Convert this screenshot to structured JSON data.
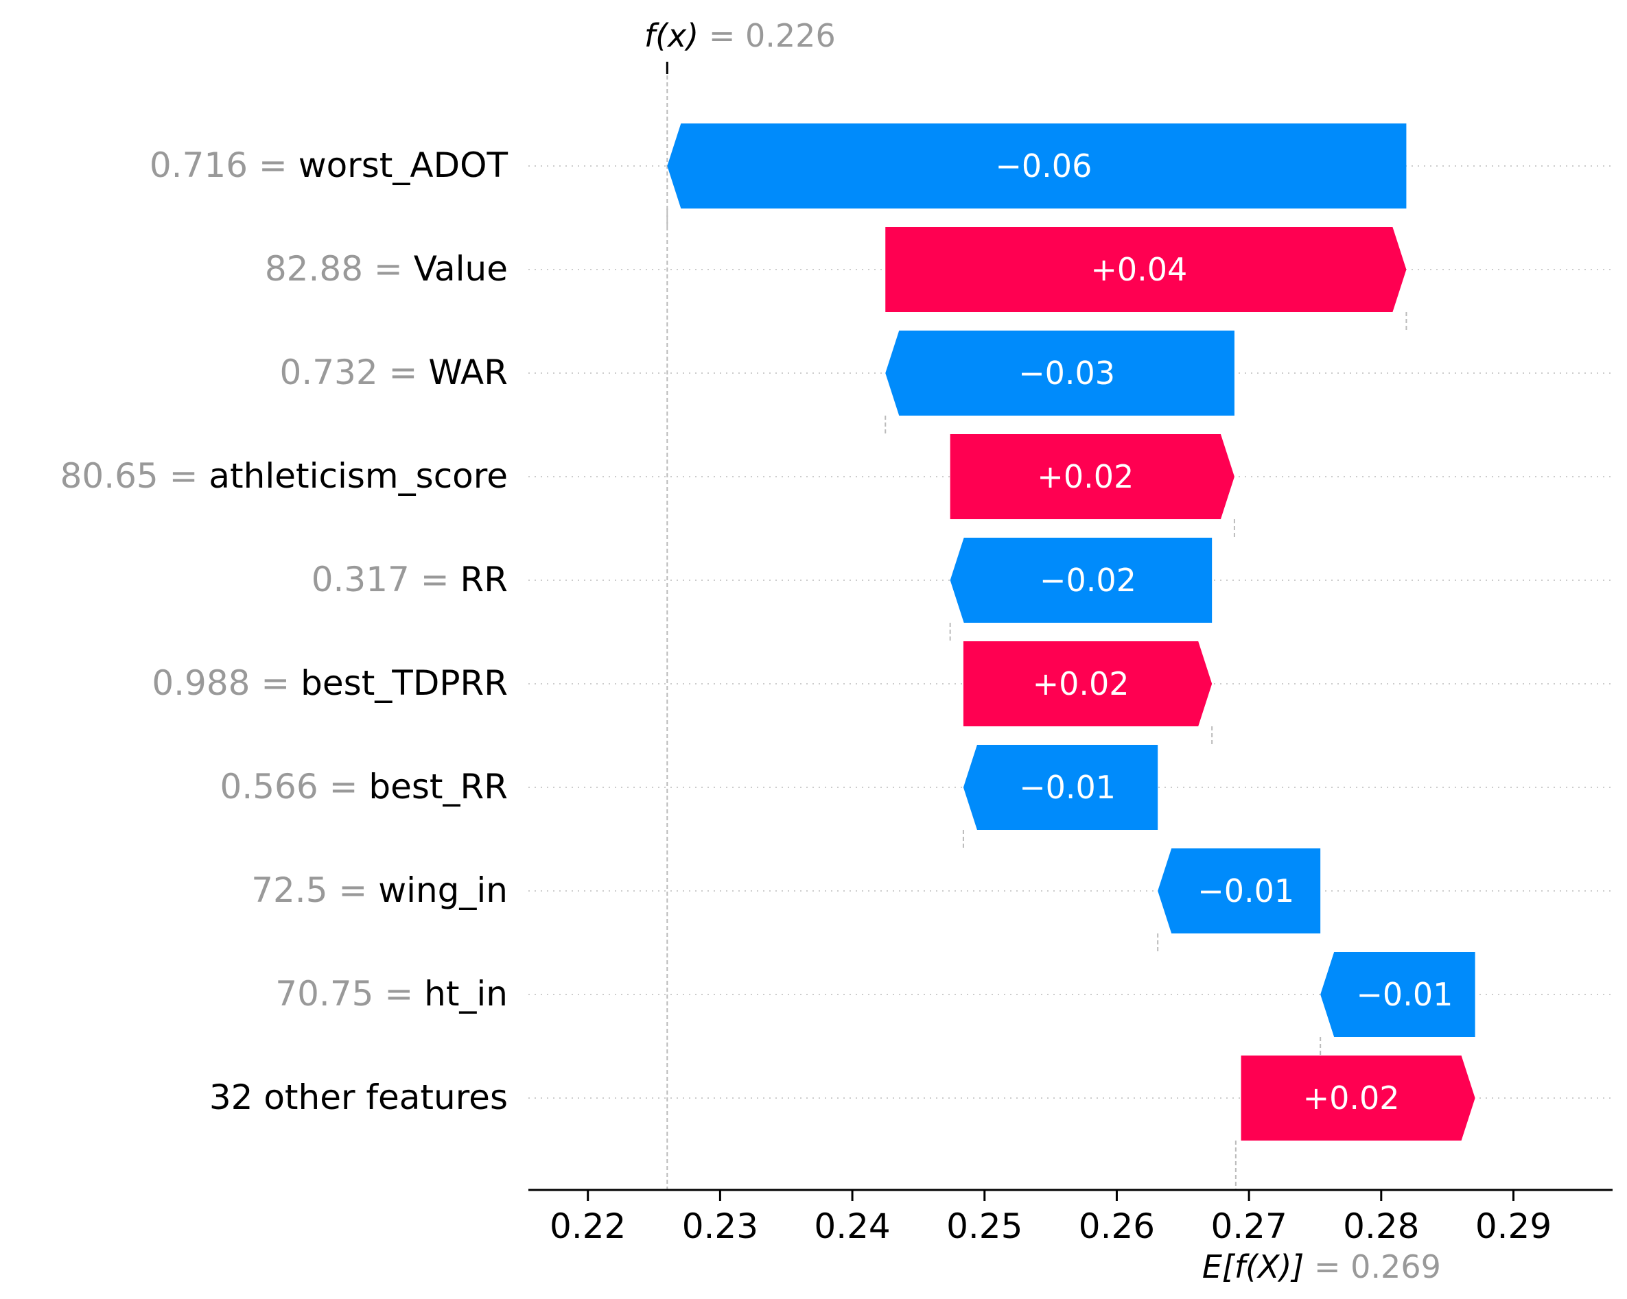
{
  "chart_data": {
    "type": "waterfall",
    "fx_label": "f(x)",
    "fx_value": "0.226",
    "fx": 0.226,
    "efx_label": "E[f(X)]",
    "efx_value": "0.269",
    "base": 0.269,
    "xlim": [
      0.2155,
      0.2975
    ],
    "xticks": [
      "0.22",
      "0.23",
      "0.24",
      "0.25",
      "0.26",
      "0.27",
      "0.28",
      "0.29"
    ],
    "xtick_values": [
      0.22,
      0.23,
      0.24,
      0.25,
      0.26,
      0.27,
      0.28,
      0.29
    ],
    "colors": {
      "positive": "#ff0051",
      "negative": "#008bfb",
      "value_text": "#999999",
      "guide": "#bbbbbb"
    },
    "features": [
      {
        "value": "0.716",
        "name": "worst_ADOT",
        "start": 0.2819,
        "end": 0.226,
        "label": "−0.06"
      },
      {
        "value": "82.88",
        "name": "Value",
        "start": 0.2425,
        "end": 0.2819,
        "label": "+0.04"
      },
      {
        "value": "0.732",
        "name": "WAR",
        "start": 0.2689,
        "end": 0.2425,
        "label": "−0.03"
      },
      {
        "value": "80.65",
        "name": "athleticism_score",
        "start": 0.2474,
        "end": 0.2689,
        "label": "+0.02"
      },
      {
        "value": "0.317",
        "name": "RR",
        "start": 0.2672,
        "end": 0.2474,
        "label": "−0.02"
      },
      {
        "value": "0.988",
        "name": "best_TDPRR",
        "start": 0.2484,
        "end": 0.2672,
        "label": "+0.02"
      },
      {
        "value": "0.566",
        "name": "best_RR",
        "start": 0.2631,
        "end": 0.2484,
        "label": "−0.01"
      },
      {
        "value": "72.5",
        "name": "wing_in",
        "start": 0.2754,
        "end": 0.2631,
        "label": "−0.01"
      },
      {
        "value": "70.75",
        "name": "ht_in",
        "start": 0.2871,
        "end": 0.2754,
        "label": "−0.01"
      },
      {
        "value": "",
        "name": "32 other features",
        "start": 0.2694,
        "end": 0.2871,
        "label": "+0.02"
      }
    ]
  }
}
